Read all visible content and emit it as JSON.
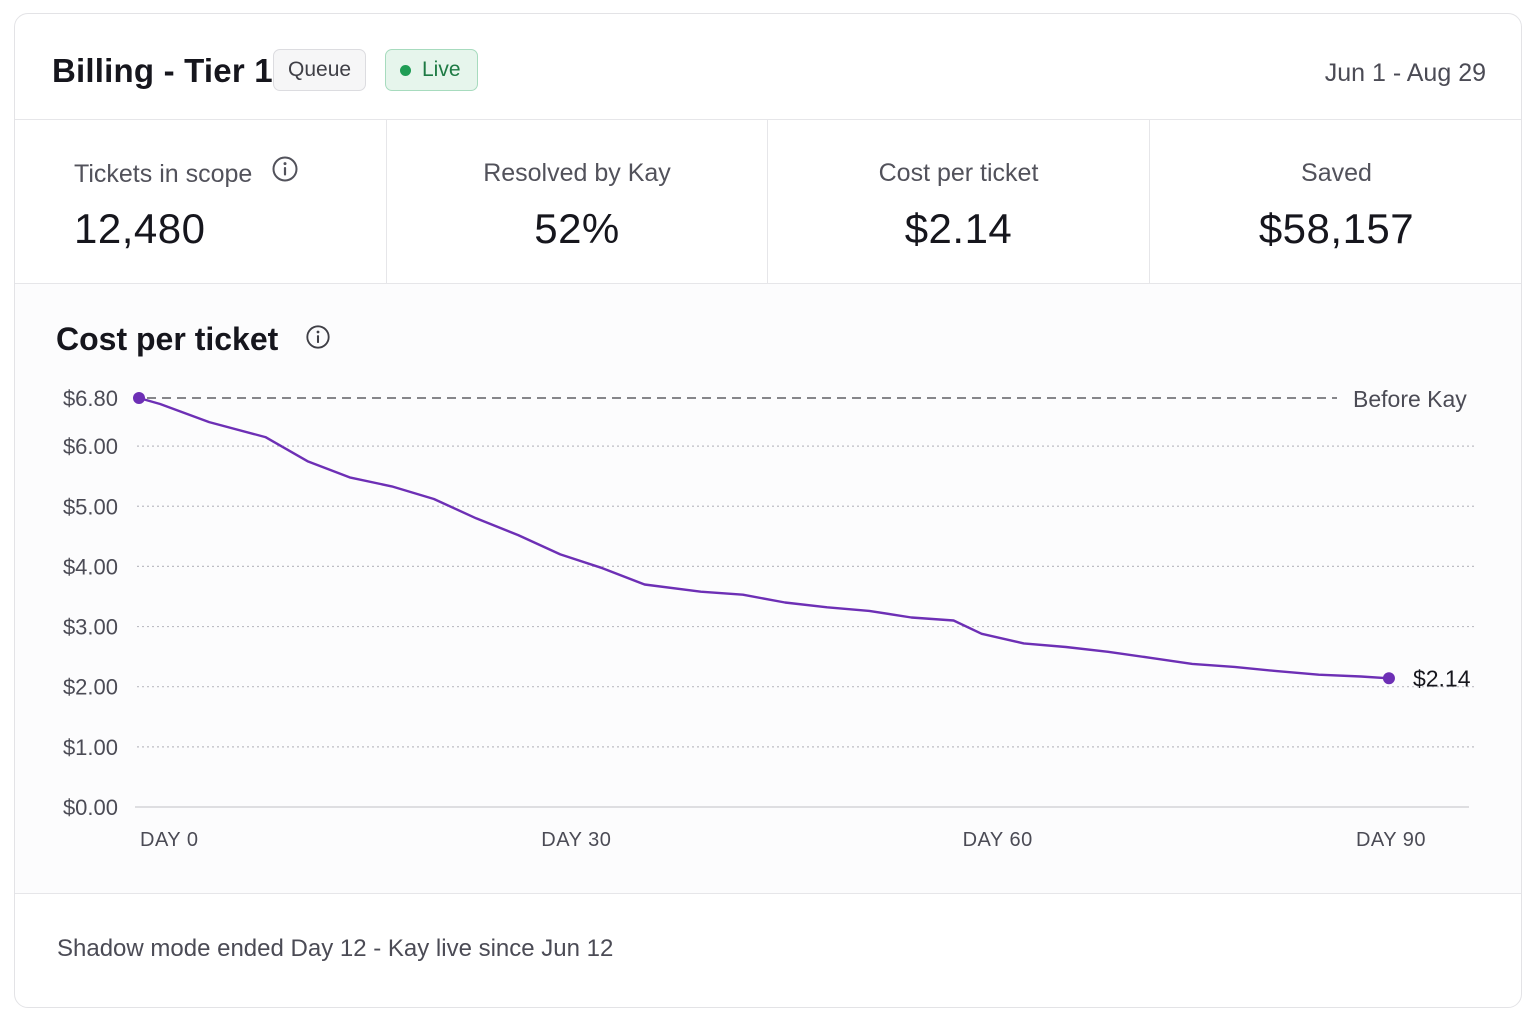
{
  "header": {
    "title": "Billing - Tier 1",
    "queue_badge": "Queue",
    "live_badge": "Live",
    "date_range": "Jun 1 - Aug 29"
  },
  "stats": [
    {
      "label": "Tickets in scope",
      "value": "12,480"
    },
    {
      "label": "Resolved by Kay",
      "value": "52%"
    },
    {
      "label": "Cost per ticket",
      "value": "$2.14"
    },
    {
      "label": "Saved",
      "value": "$58,157"
    }
  ],
  "icons": {
    "info": "info-circle-icon",
    "live": "status-dot-icon"
  },
  "colors": {
    "line": "#6d2fb5",
    "live_green": "#1f9d55",
    "live_bg": "#e6f5ec"
  },
  "chart_data": {
    "type": "line",
    "title": "Cost per ticket",
    "xlabel": "",
    "ylabel": "",
    "x_ticks": [
      0,
      30,
      60,
      90
    ],
    "x_tick_labels": [
      "DAY 0",
      "DAY 30",
      "DAY 60",
      "DAY 90"
    ],
    "xlim": [
      0,
      90
    ],
    "y_ticks": [
      0,
      1,
      2,
      3,
      4,
      5,
      6,
      6.8
    ],
    "y_tick_labels": [
      "$0.00",
      "$1.00",
      "$2.00",
      "$3.00",
      "$4.00",
      "$5.00",
      "$6.00",
      "$6.80"
    ],
    "ylim": [
      0,
      6.8
    ],
    "grid": true,
    "baseline": {
      "label": "Before Kay",
      "value": 6.8
    },
    "end_label": "$2.14",
    "series": [
      {
        "x": [
          0,
          1.5,
          5,
          9,
          12,
          15,
          18,
          21,
          24,
          27,
          30,
          33,
          36,
          40,
          43,
          46,
          49,
          52,
          55,
          58,
          60,
          63,
          66,
          69,
          72,
          75,
          78,
          81,
          84,
          87,
          89
        ],
        "y": [
          6.8,
          6.7,
          6.4,
          6.15,
          5.75,
          5.48,
          5.33,
          5.12,
          4.8,
          4.52,
          4.2,
          3.97,
          3.7,
          3.58,
          3.53,
          3.4,
          3.32,
          3.26,
          3.15,
          3.1,
          2.88,
          2.72,
          2.66,
          2.58,
          2.48,
          2.38,
          2.33,
          2.26,
          2.2,
          2.17,
          2.14
        ]
      }
    ]
  },
  "footer": {
    "note": "Shadow mode ended Day 12 - Kay live since Jun 12"
  }
}
